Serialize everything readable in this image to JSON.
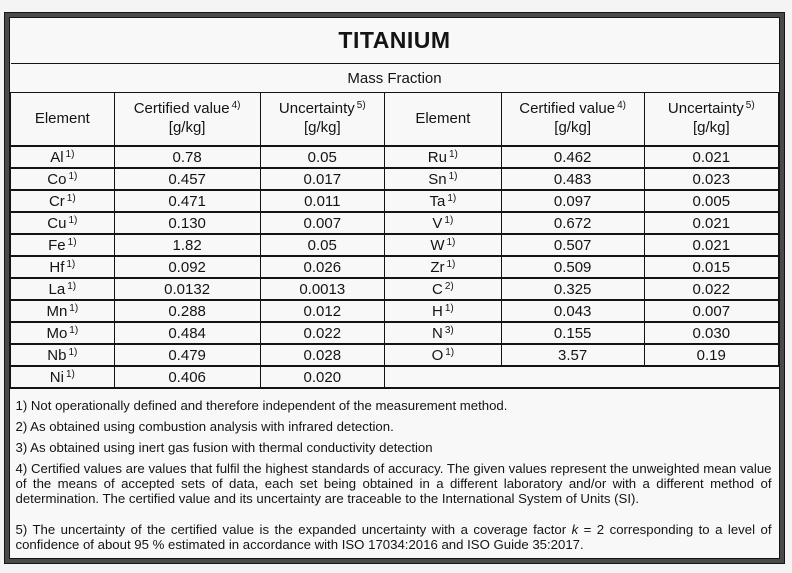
{
  "title": "TITANIUM",
  "subtitle": "Mass Fraction",
  "columns": [
    {
      "label": "Element",
      "sup": "",
      "unit": ""
    },
    {
      "label": "Certified value",
      "sup": "4)",
      "unit": "[g/kg]"
    },
    {
      "label": "Uncertainty",
      "sup": "5)",
      "unit": "[g/kg]"
    },
    {
      "label": "Element",
      "sup": "",
      "unit": ""
    },
    {
      "label": "Certified value",
      "sup": "4)",
      "unit": "[g/kg]"
    },
    {
      "label": "Uncertainty",
      "sup": "5)",
      "unit": "[g/kg]"
    }
  ],
  "rows": [
    {
      "left": {
        "el": "Al",
        "note": "1)",
        "value": "0.78",
        "uncertainty": "0.05"
      },
      "right": {
        "el": "Ru",
        "note": "1)",
        "value": "0.462",
        "uncertainty": "0.021"
      }
    },
    {
      "left": {
        "el": "Co",
        "note": "1)",
        "value": "0.457",
        "uncertainty": "0.017"
      },
      "right": {
        "el": "Sn",
        "note": "1)",
        "value": "0.483",
        "uncertainty": "0.023"
      }
    },
    {
      "left": {
        "el": "Cr",
        "note": "1)",
        "value": "0.471",
        "uncertainty": "0.011"
      },
      "right": {
        "el": "Ta",
        "note": "1)",
        "value": "0.097",
        "uncertainty": "0.005"
      }
    },
    {
      "left": {
        "el": "Cu",
        "note": "1)",
        "value": "0.130",
        "uncertainty": "0.007"
      },
      "right": {
        "el": "V",
        "note": "1)",
        "value": "0.672",
        "uncertainty": "0.021"
      }
    },
    {
      "left": {
        "el": "Fe",
        "note": "1)",
        "value": "1.82",
        "uncertainty": "0.05"
      },
      "right": {
        "el": "W",
        "note": "1)",
        "value": "0.507",
        "uncertainty": "0.021"
      }
    },
    {
      "left": {
        "el": "Hf",
        "note": "1)",
        "value": "0.092",
        "uncertainty": "0.026"
      },
      "right": {
        "el": "Zr",
        "note": "1)",
        "value": "0.509",
        "uncertainty": "0.015"
      }
    },
    {
      "left": {
        "el": "La",
        "note": "1)",
        "value": "0.0132",
        "uncertainty": "0.0013"
      },
      "right": {
        "el": "C",
        "note": "2)",
        "value": "0.325",
        "uncertainty": "0.022"
      }
    },
    {
      "left": {
        "el": "Mn",
        "note": "1)",
        "value": "0.288",
        "uncertainty": "0.012"
      },
      "right": {
        "el": "H",
        "note": "1)",
        "value": "0.043",
        "uncertainty": "0.007"
      }
    },
    {
      "left": {
        "el": "Mo",
        "note": "1)",
        "value": "0.484",
        "uncertainty": "0.022"
      },
      "right": {
        "el": "N",
        "note": "3)",
        "value": "0.155",
        "uncertainty": "0.030"
      }
    },
    {
      "left": {
        "el": "Nb",
        "note": "1)",
        "value": "0.479",
        "uncertainty": "0.028"
      },
      "right": {
        "el": "O",
        "note": "1)",
        "value": "3.57",
        "uncertainty": "0.19"
      }
    },
    {
      "left": {
        "el": "Ni",
        "note": "1)",
        "value": "0.406",
        "uncertainty": "0.020"
      },
      "right": null
    }
  ],
  "footnotes": {
    "fn1": "1) Not operationally defined and therefore independent of the measurement method.",
    "fn2": "2) As obtained using combustion analysis with infrared detection.",
    "fn3": "3) As obtained using inert gas fusion with thermal conductivity detection",
    "fn4": "4) Certified values are values that fulfil the highest standards of accuracy. The given values represent the unweighted mean value of the means of accepted sets of data, each set being obtained in a different laboratory and/or with a different method of determination. The certified value and its uncertainty are traceable to the International System of Units (SI).",
    "fn5_before_k": "5) The uncertainty of the certified value is the expanded uncertainty with a coverage factor ",
    "fn5_k": "k",
    "fn5_after_k": " = 2 corresponding to a level of confidence of about 95 % estimated in accordance with ISO 17034:2016 and ISO Guide 35:2017."
  }
}
